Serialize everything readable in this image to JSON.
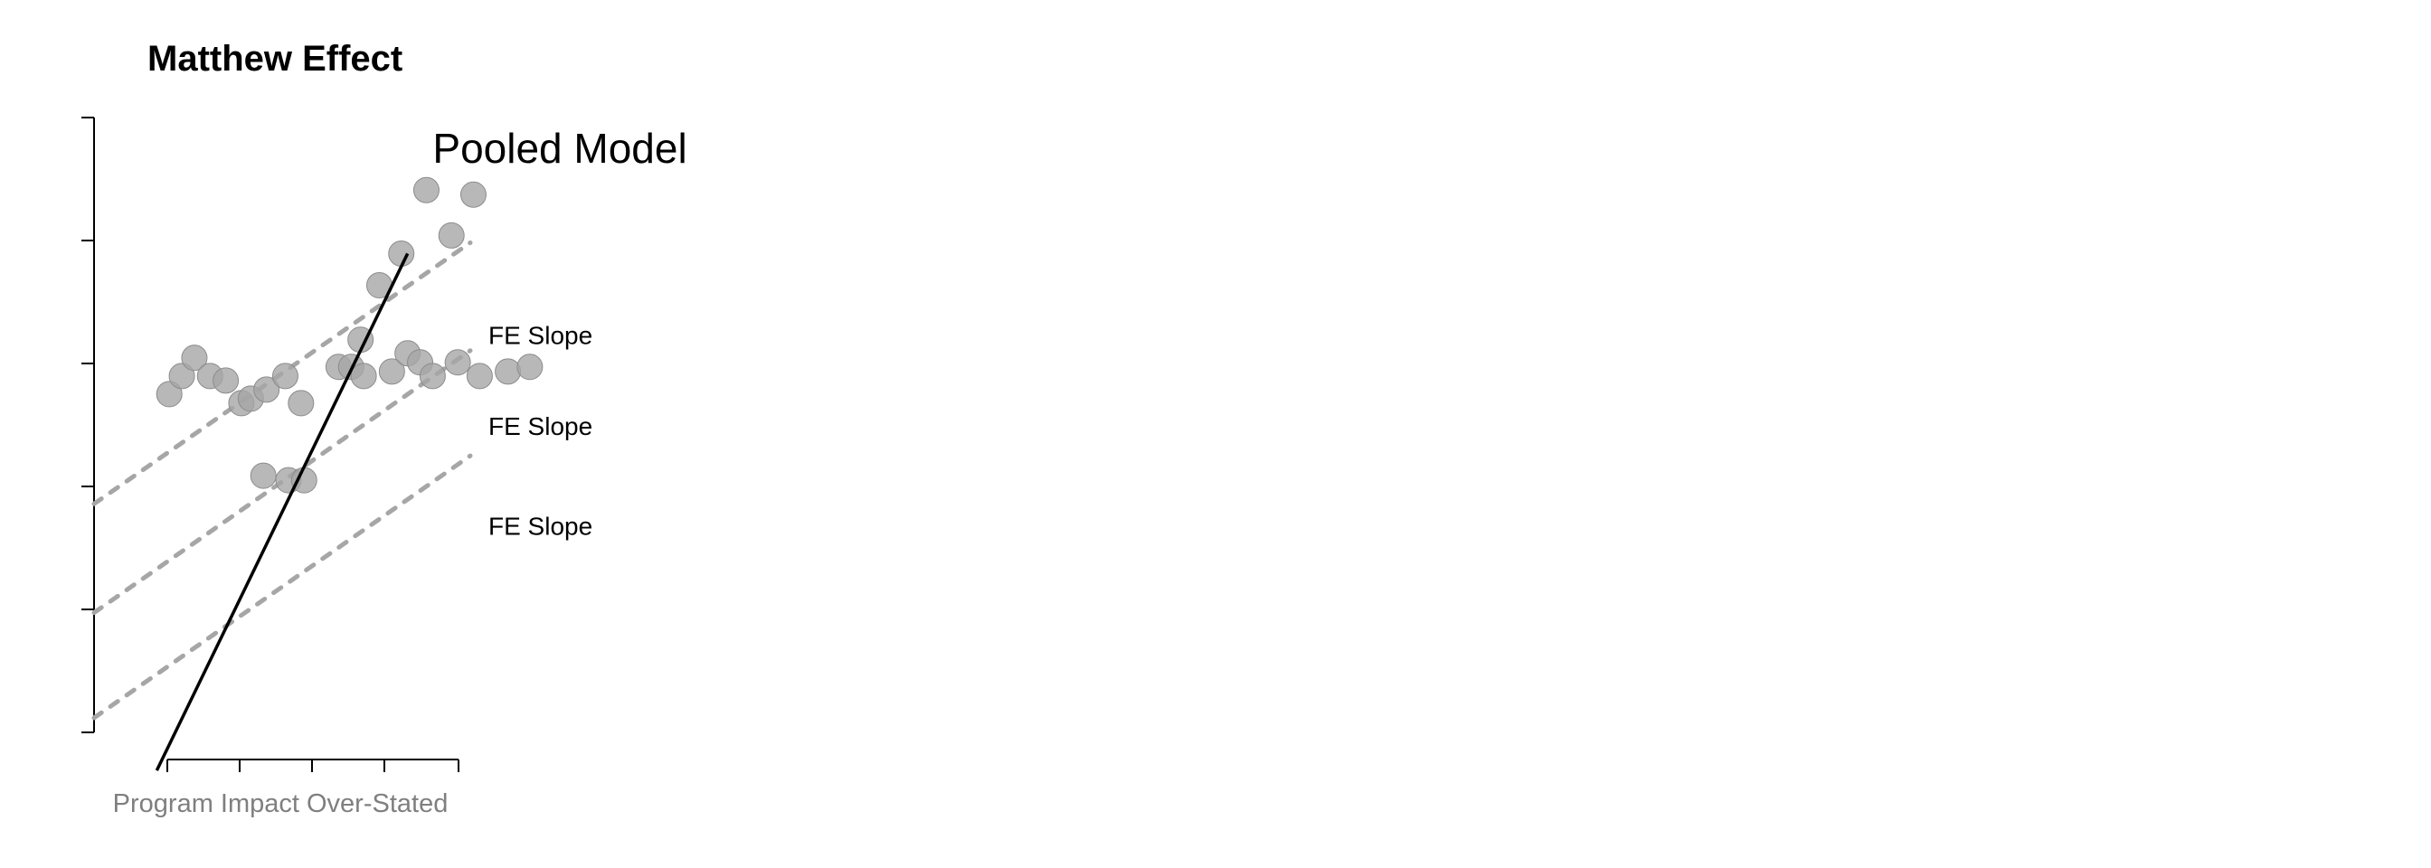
{
  "chart_data": [
    {
      "type": "scatter",
      "title": "Matthew Effect",
      "xlabel": "Program Impact Over-Stated",
      "ylabel": "",
      "annotations": {
        "pooled": "Pooled Model",
        "fe": [
          "FE Slope",
          "FE Slope",
          "FE Slope"
        ]
      },
      "colors": {
        "points": "#a6a6a6",
        "fe_line": "#a6a6a6",
        "pooled_line": "#000000"
      },
      "groups": [
        {
          "x": [
            1.7,
            2.1,
            2.35,
            2.9,
            3.25,
            3.55,
            3.9,
            4.3,
            4.7,
            5.05
          ],
          "y": [
            -0.55,
            -0.6,
            -0.6,
            0.65,
            0.95,
            1.55,
            1.9,
            2.6,
            2.1,
            2.55
          ]
        },
        {
          "x": [
            0.2,
            0.4,
            0.6,
            0.85,
            1.1,
            1.35,
            1.5,
            1.75,
            2.05,
            2.3
          ],
          "y": [
            0.35,
            0.55,
            0.75,
            0.55,
            0.5,
            0.25,
            0.3,
            0.4,
            0.55,
            0.25
          ]
        },
        {
          "x": [
            3.1,
            3.3,
            3.75,
            4.0,
            4.2,
            4.4,
            4.8,
            5.15,
            5.6,
            5.95
          ],
          "y": [
            0.65,
            0.55,
            0.6,
            0.8,
            0.7,
            0.55,
            0.7,
            0.55,
            0.6,
            0.65
          ]
        }
      ],
      "fe_lines": [
        {
          "x": [
            -1.0,
            5.0
          ],
          "y": [
            -0.86,
            2.02
          ]
        },
        {
          "x": [
            -1.0,
            5.0
          ],
          "y": [
            -2.06,
            0.83
          ]
        },
        {
          "x": [
            -1.0,
            5.0
          ],
          "y": [
            -3.22,
            -0.33
          ]
        }
      ],
      "pooled_line": {
        "x": [
          0.0,
          4.0
        ],
        "y": [
          -3.8,
          1.9
        ]
      },
      "fe_labels_at": [
        1.0,
        0.0,
        -1.1
      ],
      "pooled_label_at": [
        4.4,
        2.9
      ]
    }
  ]
}
